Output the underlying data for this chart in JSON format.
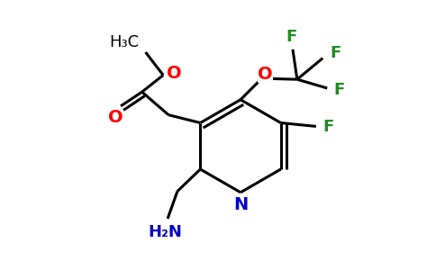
{
  "background": "#ffffff",
  "bond_color": "#000000",
  "atom_colors": {
    "O": "#ff0000",
    "N": "#0000cc",
    "F": "#228B22",
    "C": "#000000"
  },
  "bond_width": 2.2,
  "font_size": 13
}
